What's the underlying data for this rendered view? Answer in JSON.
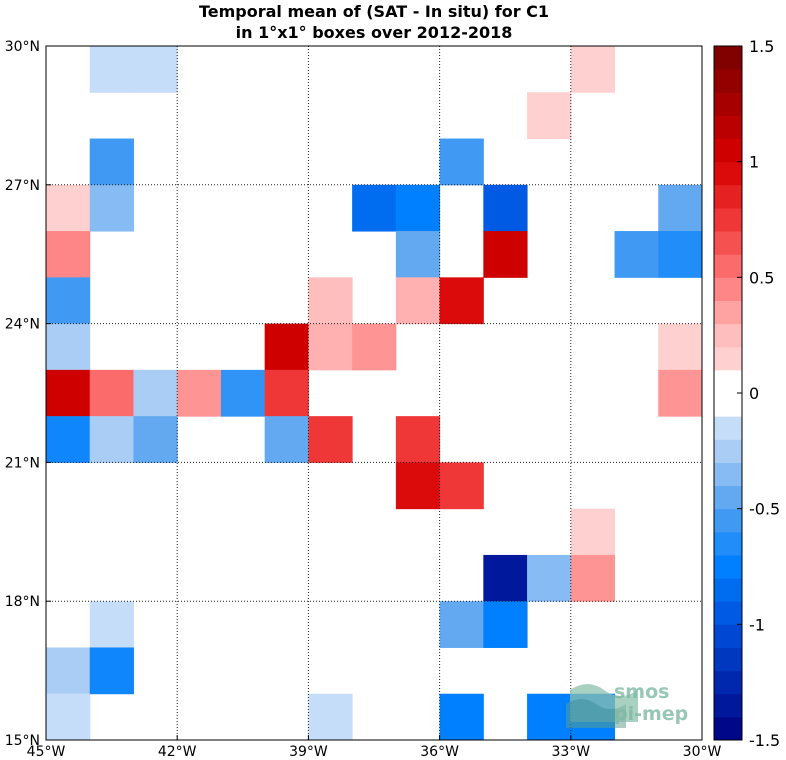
{
  "chart_data": {
    "type": "heatmap",
    "title_lines": [
      "Temporal mean of (SAT - In situ) for C1",
      "in 1°x1° boxes over 2012-2018"
    ],
    "x_ticks": [
      {
        "lon": -45,
        "label": "45°W"
      },
      {
        "lon": -42,
        "label": "42°W"
      },
      {
        "lon": -39,
        "label": "39°W"
      },
      {
        "lon": -36,
        "label": "36°W"
      },
      {
        "lon": -33,
        "label": "33°W"
      },
      {
        "lon": -30,
        "label": "30°W"
      }
    ],
    "y_ticks": [
      {
        "lat": 15,
        "label": "15°N"
      },
      {
        "lat": 18,
        "label": "18°N"
      },
      {
        "lat": 21,
        "label": "21°N"
      },
      {
        "lat": 24,
        "label": "24°N"
      },
      {
        "lat": 27,
        "label": "27°N"
      },
      {
        "lat": 30,
        "label": "30°N"
      }
    ],
    "xlim": [
      -45,
      -30
    ],
    "ylim": [
      15,
      30
    ],
    "grid": true,
    "colorbar": {
      "range": [
        -1.5,
        1.5
      ],
      "levels": 30,
      "ticks": [
        {
          "value": 1.5,
          "label": "1.5"
        },
        {
          "value": 1,
          "label": "1"
        },
        {
          "value": 0.5,
          "label": "0.5"
        },
        {
          "value": 0,
          "label": "0"
        },
        {
          "value": -0.5,
          "label": "-0.5"
        },
        {
          "value": -1,
          "label": "-1"
        },
        {
          "value": -1.5,
          "label": "-1.5"
        }
      ]
    },
    "cells": [
      {
        "lon": -44,
        "lat": 29,
        "value": -0.15
      },
      {
        "lon": -43,
        "lat": 29,
        "value": -0.15
      },
      {
        "lon": -33,
        "lat": 29,
        "value": 0.15
      },
      {
        "lon": -34,
        "lat": 28,
        "value": 0.15
      },
      {
        "lon": -44,
        "lat": 27,
        "value": -0.55
      },
      {
        "lon": -36,
        "lat": 27,
        "value": -0.55
      },
      {
        "lon": -45,
        "lat": 26,
        "value": 0.15
      },
      {
        "lon": -44,
        "lat": 26,
        "value": -0.35
      },
      {
        "lon": -38,
        "lat": 26,
        "value": -0.85
      },
      {
        "lon": -37,
        "lat": 26,
        "value": -0.75
      },
      {
        "lon": -35,
        "lat": 26,
        "value": -0.95
      },
      {
        "lon": -31,
        "lat": 26,
        "value": -0.45
      },
      {
        "lon": -45,
        "lat": 25,
        "value": 0.45
      },
      {
        "lon": -37,
        "lat": 25,
        "value": -0.45
      },
      {
        "lon": -35,
        "lat": 25,
        "value": 1.05
      },
      {
        "lon": -32,
        "lat": 25,
        "value": -0.55
      },
      {
        "lon": -31,
        "lat": 25,
        "value": -0.65
      },
      {
        "lon": -45,
        "lat": 24,
        "value": -0.55
      },
      {
        "lon": -39,
        "lat": 24,
        "value": 0.25
      },
      {
        "lon": -37,
        "lat": 24,
        "value": 0.3
      },
      {
        "lon": -36,
        "lat": 24,
        "value": 0.95
      },
      {
        "lon": -45,
        "lat": 23,
        "value": -0.25
      },
      {
        "lon": -40,
        "lat": 23,
        "value": 1.05
      },
      {
        "lon": -39,
        "lat": 23,
        "value": 0.3
      },
      {
        "lon": -38,
        "lat": 23,
        "value": 0.4
      },
      {
        "lon": -31,
        "lat": 23,
        "value": 0.15
      },
      {
        "lon": -45,
        "lat": 22,
        "value": 1.05
      },
      {
        "lon": -44,
        "lat": 22,
        "value": 0.55
      },
      {
        "lon": -43,
        "lat": 22,
        "value": -0.25
      },
      {
        "lon": -42,
        "lat": 22,
        "value": 0.4
      },
      {
        "lon": -41,
        "lat": 22,
        "value": -0.6
      },
      {
        "lon": -40,
        "lat": 22,
        "value": 0.75
      },
      {
        "lon": -31,
        "lat": 22,
        "value": 0.4
      },
      {
        "lon": -45,
        "lat": 21,
        "value": -0.7
      },
      {
        "lon": -44,
        "lat": 21,
        "value": -0.25
      },
      {
        "lon": -43,
        "lat": 21,
        "value": -0.45
      },
      {
        "lon": -40,
        "lat": 21,
        "value": -0.45
      },
      {
        "lon": -39,
        "lat": 21,
        "value": 0.75
      },
      {
        "lon": -37,
        "lat": 21,
        "value": 0.75
      },
      {
        "lon": -37,
        "lat": 20,
        "value": 0.95
      },
      {
        "lon": -36,
        "lat": 20,
        "value": 0.75
      },
      {
        "lon": -33,
        "lat": 19,
        "value": 0.15
      },
      {
        "lon": -35,
        "lat": 18,
        "value": -1.35
      },
      {
        "lon": -34,
        "lat": 18,
        "value": -0.35
      },
      {
        "lon": -33,
        "lat": 18,
        "value": 0.4
      },
      {
        "lon": -44,
        "lat": 17,
        "value": -0.15
      },
      {
        "lon": -36,
        "lat": 17,
        "value": -0.45
      },
      {
        "lon": -35,
        "lat": 17,
        "value": -0.75
      },
      {
        "lon": -45,
        "lat": 16,
        "value": -0.25
      },
      {
        "lon": -44,
        "lat": 16,
        "value": -0.7
      },
      {
        "lon": -45,
        "lat": 15,
        "value": -0.15
      },
      {
        "lon": -39,
        "lat": 15,
        "value": -0.15
      },
      {
        "lon": -36,
        "lat": 15,
        "value": -0.75
      },
      {
        "lon": -34,
        "lat": 15,
        "value": -0.75
      },
      {
        "lon": -33,
        "lat": 15,
        "value": -0.75
      }
    ]
  },
  "watermark": {
    "line1": "smos",
    "line2": "pi-mep"
  }
}
